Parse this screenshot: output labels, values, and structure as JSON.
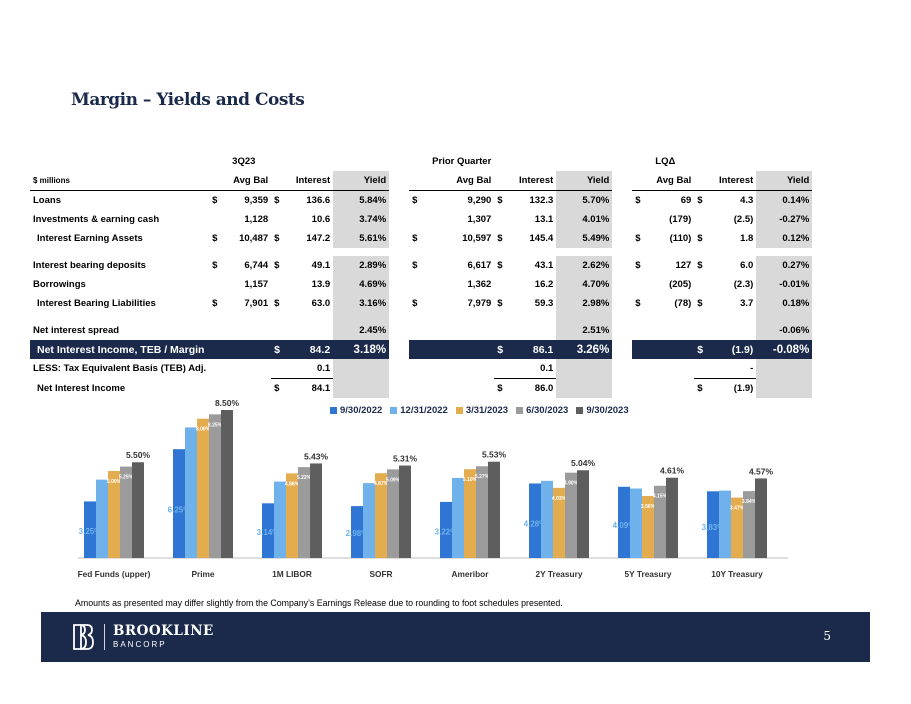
{
  "title": "Margin – Yields and Costs",
  "table": {
    "groups": [
      "3Q23",
      "Prior Quarter",
      "LQΔ"
    ],
    "units": "$ millions",
    "cols": [
      "Avg Bal",
      "Interest",
      "Yield"
    ],
    "rows": {
      "loans": {
        "label": "Loans",
        "c1": [
          "$",
          "9,359",
          "$",
          "136.6",
          "5.84%"
        ],
        "c2": [
          "$",
          "9,290",
          "$",
          "132.3",
          "5.70%"
        ],
        "c3": [
          "$",
          "69",
          "$",
          "4.3",
          "0.14%"
        ]
      },
      "invest": {
        "label": "Investments & earning cash",
        "c1": [
          "",
          "1,128",
          "",
          "10.6",
          "3.74%"
        ],
        "c2": [
          "",
          "1,307",
          "",
          "13.1",
          "4.01%"
        ],
        "c3": [
          "",
          "(179)",
          "",
          "(2.5)",
          "-0.27%"
        ]
      },
      "iea": {
        "label": "Interest Earning Assets",
        "c1": [
          "$",
          "10,487",
          "$",
          "147.2",
          "5.61%"
        ],
        "c2": [
          "$",
          "10,597",
          "$",
          "145.4",
          "5.49%"
        ],
        "c3": [
          "$",
          "(110)",
          "$",
          "1.8",
          "0.12%"
        ]
      },
      "ibd": {
        "label": "Interest bearing deposits",
        "c1": [
          "$",
          "6,744",
          "$",
          "49.1",
          "2.89%"
        ],
        "c2": [
          "$",
          "6,617",
          "$",
          "43.1",
          "2.62%"
        ],
        "c3": [
          "$",
          "127",
          "$",
          "6.0",
          "0.27%"
        ]
      },
      "borrow": {
        "label": "Borrowings",
        "c1": [
          "",
          "1,157",
          "",
          "13.9",
          "4.69%"
        ],
        "c2": [
          "",
          "1,362",
          "",
          "16.2",
          "4.70%"
        ],
        "c3": [
          "",
          "(205)",
          "",
          "(2.3)",
          "-0.01%"
        ]
      },
      "ibl": {
        "label": "Interest Bearing Liabilities",
        "c1": [
          "$",
          "7,901",
          "$",
          "63.0",
          "3.16%"
        ],
        "c2": [
          "$",
          "7,979",
          "$",
          "59.3",
          "2.98%"
        ],
        "c3": [
          "$",
          "(78)",
          "$",
          "3.7",
          "0.18%"
        ]
      },
      "spread": {
        "label": "Net interest spread",
        "y1": "2.45%",
        "y2": "2.51%",
        "y3": "-0.06%"
      },
      "nii": {
        "label": "Net Interest Income, TEB / Margin",
        "c1": [
          "$",
          "84.2",
          "3.18%"
        ],
        "c2": [
          "$",
          "86.1",
          "3.26%"
        ],
        "c3": [
          "$",
          "(1.9)",
          "-0.08%"
        ]
      },
      "teb": {
        "label": "LESS: Tax Equivalent Basis (TEB) Adj.",
        "v1": "0.1",
        "v2": "0.1",
        "v3": "-"
      },
      "netii": {
        "label": "Net Interest Income",
        "c1": [
          "$",
          "84.1"
        ],
        "c2": [
          "$",
          "86.0"
        ],
        "c3": [
          "$",
          "(1.9)"
        ]
      }
    }
  },
  "chart_data": {
    "type": "bar",
    "categories": [
      "Fed Funds (upper)",
      "Prime",
      "1M LIBOR",
      "SOFR",
      "Ameribor",
      "2Y Treasury",
      "5Y Treasury",
      "10Y Treasury"
    ],
    "series": [
      {
        "name": "9/30/2022",
        "color": "#2e75d4",
        "values": [
          3.25,
          6.25,
          3.14,
          2.98,
          3.22,
          4.28,
          4.09,
          3.83
        ],
        "labels": [
          "3.25%",
          "6.25%",
          "3.14%",
          "2.98%",
          "3.22%",
          "4.28%",
          "4.09%",
          "3.83%"
        ]
      },
      {
        "name": "12/31/2022",
        "color": "#6fb1ea",
        "values": [
          4.5,
          7.5,
          4.39,
          4.3,
          4.6,
          4.43,
          3.99,
          3.87
        ],
        "labels": [
          "",
          "",
          "",
          "",
          "",
          "",
          "",
          ""
        ]
      },
      {
        "name": "3/31/2023",
        "color": "#e3ad4f",
        "values": [
          5.0,
          8.0,
          4.86,
          4.87,
          5.1,
          4.03,
          3.56,
          3.47
        ],
        "labels": [
          "5.00%",
          "8.00%",
          "4.86%",
          "4.87%",
          "5.10%",
          "4.03%",
          "3.56%",
          "3.47%"
        ]
      },
      {
        "name": "6/30/2023",
        "color": "#9b9b9b",
        "values": [
          5.25,
          8.25,
          5.22,
          5.09,
          5.27,
          4.9,
          4.15,
          3.84
        ],
        "labels": [
          "5.25%",
          "8.25%",
          "5.22%",
          "5.09%",
          "5.27%",
          "4.90%",
          "4.15%",
          "3.84%"
        ]
      },
      {
        "name": "9/30/2023",
        "color": "#5e5e5e",
        "values": [
          5.5,
          8.5,
          5.43,
          5.31,
          5.53,
          5.04,
          4.61,
          4.57
        ],
        "labels": [
          "5.50%",
          "8.50%",
          "5.43%",
          "5.31%",
          "5.53%",
          "5.04%",
          "4.61%",
          "4.57%"
        ]
      }
    ],
    "ylim": [
      0,
      8.5
    ]
  },
  "footnote": "Amounts as presented may differ slightly from the Company’s Earnings Release due to rounding to foot schedules presented.",
  "footer": {
    "name": "BROOKLINE",
    "sub": "BANCORP",
    "page": "5"
  }
}
